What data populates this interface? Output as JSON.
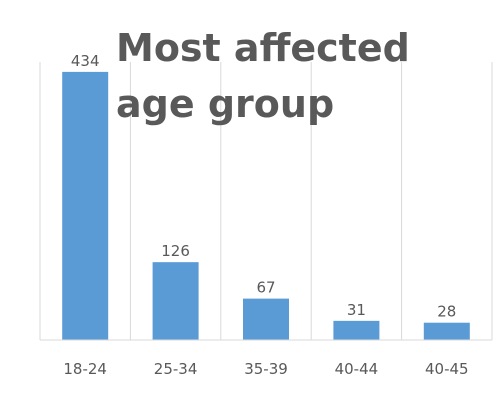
{
  "chart_data": {
    "type": "bar",
    "title": "Most affected age group",
    "categories": [
      "18-24",
      "25-34",
      "35-39",
      "40-44",
      "40-45"
    ],
    "values": [
      434,
      126,
      67,
      31,
      28
    ],
    "xlabel": "",
    "ylabel": "",
    "ylim": [
      0,
      450
    ],
    "grid": "vertical",
    "legend": "none",
    "bar_color": "#5b9bd5",
    "gridline_color": "#d9d9d9",
    "label_color": "#595959"
  }
}
